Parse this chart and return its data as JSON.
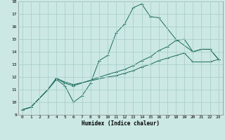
{
  "xlabel": "Humidex (Indice chaleur)",
  "bg_color": "#cce8e4",
  "grid_color": "#aacfcc",
  "line_color": "#1a6b5a",
  "xlim": [
    -0.5,
    23.5
  ],
  "ylim": [
    9,
    18
  ],
  "xticks": [
    0,
    1,
    2,
    3,
    4,
    5,
    6,
    7,
    8,
    9,
    10,
    11,
    12,
    13,
    14,
    15,
    16,
    17,
    18,
    19,
    20,
    21,
    22,
    23
  ],
  "yticks": [
    9,
    10,
    11,
    12,
    13,
    14,
    15,
    16,
    17,
    18
  ],
  "line1_x": [
    0,
    1,
    3,
    4,
    5,
    6,
    7,
    8,
    9,
    10,
    11,
    12,
    13,
    14,
    15,
    16,
    18,
    20,
    21,
    22,
    23
  ],
  "line1_y": [
    9.4,
    9.6,
    11.0,
    11.8,
    11.3,
    10.0,
    10.5,
    11.5,
    13.3,
    13.7,
    15.5,
    16.2,
    17.5,
    17.8,
    16.8,
    16.7,
    15.0,
    14.0,
    14.2,
    14.2,
    13.4
  ],
  "line2_x": [
    0,
    1,
    3,
    4,
    5,
    6,
    10,
    11,
    12,
    13,
    14,
    15,
    16,
    17,
    18,
    19,
    20,
    21,
    22,
    23
  ],
  "line2_y": [
    9.4,
    9.6,
    11.0,
    11.9,
    11.5,
    11.3,
    12.2,
    12.4,
    12.6,
    12.9,
    13.3,
    13.6,
    14.1,
    14.4,
    14.9,
    15.0,
    14.0,
    14.2,
    14.2,
    13.4
  ],
  "line3_x": [
    0,
    1,
    3,
    4,
    5,
    6,
    10,
    11,
    12,
    13,
    14,
    15,
    16,
    17,
    18,
    19,
    20,
    21,
    22,
    23
  ],
  "line3_y": [
    9.4,
    9.6,
    11.0,
    11.9,
    11.6,
    11.4,
    12.0,
    12.1,
    12.3,
    12.5,
    12.8,
    13.0,
    13.3,
    13.5,
    13.7,
    13.9,
    13.2,
    13.2,
    13.2,
    13.4
  ]
}
